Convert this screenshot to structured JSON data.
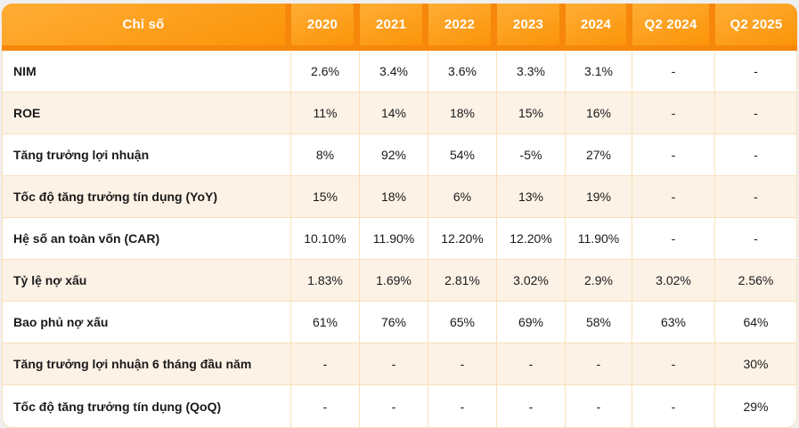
{
  "chart_data": {
    "type": "table",
    "title": "",
    "header": {
      "metric_label": "Chỉ số",
      "periods": [
        "2020",
        "2021",
        "2022",
        "2023",
        "2024",
        "Q2 2024",
        "Q2 2025"
      ]
    },
    "rows": [
      {
        "label": "NIM",
        "values": [
          "2.6%",
          "3.4%",
          "3.6%",
          "3.3%",
          "3.1%",
          "-",
          "-"
        ]
      },
      {
        "label": "ROE",
        "values": [
          "11%",
          "14%",
          "18%",
          "15%",
          "16%",
          "-",
          "-"
        ]
      },
      {
        "label": "Tăng trưởng lợi nhuận",
        "values": [
          "8%",
          "92%",
          "54%",
          "-5%",
          "27%",
          "-",
          "-"
        ]
      },
      {
        "label": "Tốc độ tăng trưởng tín dụng (YoY)",
        "values": [
          "15%",
          "18%",
          "6%",
          "13%",
          "19%",
          "-",
          "-"
        ]
      },
      {
        "label": "Hệ số an toàn vốn (CAR)",
        "values": [
          "10.10%",
          "11.90%",
          "12.20%",
          "12.20%",
          "11.90%",
          "-",
          "-"
        ]
      },
      {
        "label": "Tỷ lệ nợ xấu",
        "values": [
          "1.83%",
          "1.69%",
          "2.81%",
          "3.02%",
          "2.9%",
          "3.02%",
          "2.56%"
        ]
      },
      {
        "label": "Bao phủ nợ xấu",
        "values": [
          "61%",
          "76%",
          "65%",
          "69%",
          "58%",
          "63%",
          "64%"
        ]
      },
      {
        "label": "Tăng trưởng lợi nhuận 6 tháng đầu năm",
        "values": [
          "-",
          "-",
          "-",
          "-",
          "-",
          "-",
          "30%"
        ]
      },
      {
        "label": "Tốc độ tăng trưởng tín dụng (QoQ)",
        "values": [
          "-",
          "-",
          "-",
          "-",
          "-",
          "-",
          "29%"
        ]
      }
    ]
  },
  "colors": {
    "header_base_orange": "#f6870b",
    "header_cell_gradient_top": "#ffad36",
    "header_cell_gradient_bottom": "#fb9408",
    "row_stripe_cream": "#fdf2e6",
    "row_white": "#ffffff",
    "grid_border_tan": "#f9dfbb",
    "header_text": "#ffffff",
    "body_text": "#1a1a1a",
    "page_background": "#efefef"
  }
}
